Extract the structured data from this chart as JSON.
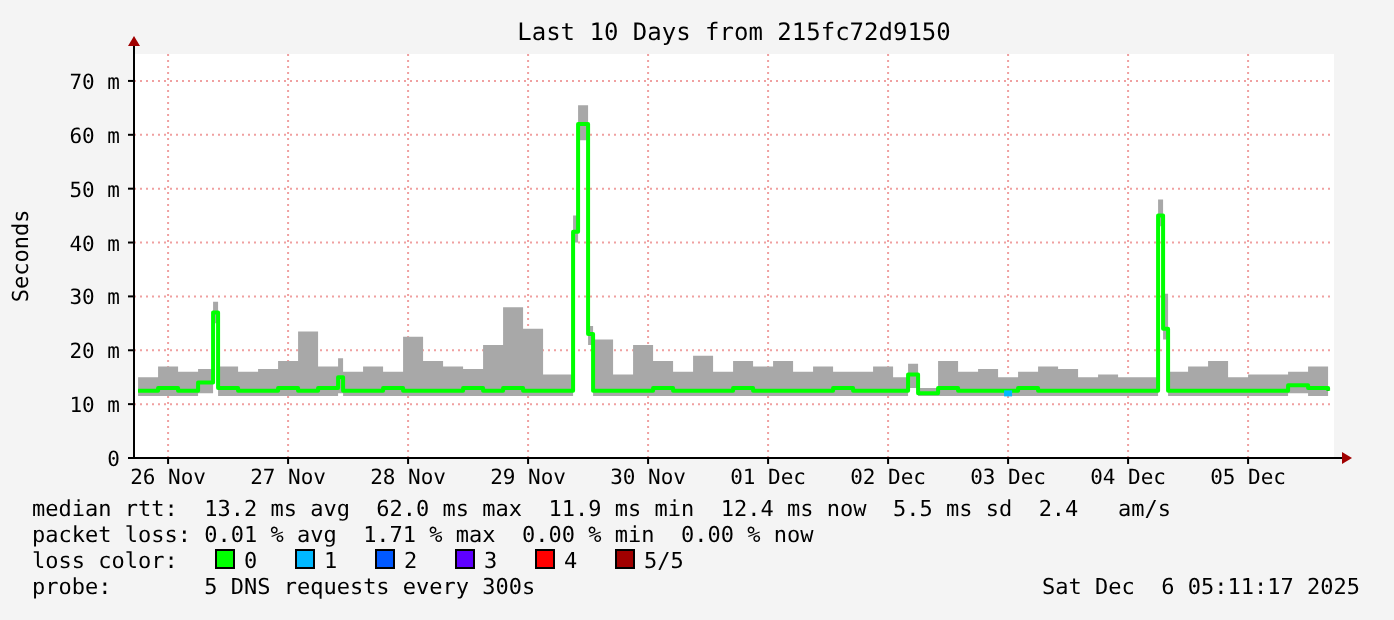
{
  "chart_data": {
    "type": "step",
    "title": "Last 10 Days from 215fc72d9150",
    "ylabel": "Seconds",
    "xlim": [
      "2025-11-26T05:11",
      "2025-12-06T05:11"
    ],
    "xticks": [
      {
        "value": "2025-11-26T12:00",
        "label": "26 Nov"
      },
      {
        "value": "2025-11-27T12:00",
        "label": "27 Nov"
      },
      {
        "value": "2025-11-28T12:00",
        "label": "28 Nov"
      },
      {
        "value": "2025-11-29T12:00",
        "label": "29 Nov"
      },
      {
        "value": "2025-11-30T12:00",
        "label": "30 Nov"
      },
      {
        "value": "2025-12-01T12:00",
        "label": "01 Dec"
      },
      {
        "value": "2025-12-02T12:00",
        "label": "02 Dec"
      },
      {
        "value": "2025-12-03T12:00",
        "label": "03 Dec"
      },
      {
        "value": "2025-12-04T12:00",
        "label": "04 Dec"
      },
      {
        "value": "2025-12-05T12:00",
        "label": "05 Dec"
      }
    ],
    "ylim": [
      0,
      75
    ],
    "yticks": [
      0,
      {
        "value": 10,
        "label": "10 m"
      },
      {
        "value": 20,
        "label": "20 m"
      },
      {
        "value": 30,
        "label": "30 m"
      },
      {
        "value": 40,
        "label": "40 m"
      },
      {
        "value": 50,
        "label": "50 m"
      },
      {
        "value": 60,
        "label": "60 m"
      },
      {
        "value": 70,
        "label": "70 m"
      }
    ],
    "grid": true,
    "legend": "bottom",
    "legend_title": "loss color:",
    "series": [
      {
        "name": "0",
        "color": "#00ff00",
        "x": [
          "2025-11-26T06:00",
          "2025-11-26T10:00",
          "2025-11-26T14:00",
          "2025-11-26T18:00",
          "2025-11-26T21:00",
          "2025-11-26T22:00",
          "2025-11-27T02:00",
          "2025-11-27T06:00",
          "2025-11-27T10:00",
          "2025-11-27T14:00",
          "2025-11-27T18:00",
          "2025-11-27T22:00",
          "2025-11-27T23:00",
          "2025-11-28T03:00",
          "2025-11-28T07:00",
          "2025-11-28T11:00",
          "2025-11-28T15:00",
          "2025-11-28T19:00",
          "2025-11-28T23:00",
          "2025-11-29T03:00",
          "2025-11-29T07:00",
          "2025-11-29T11:00",
          "2025-11-29T15:00",
          "2025-11-29T21:00",
          "2025-11-29T22:00",
          "2025-11-30T00:00",
          "2025-11-30T01:00",
          "2025-11-30T05:00",
          "2025-11-30T09:00",
          "2025-11-30T13:00",
          "2025-11-30T17:00",
          "2025-11-30T21:00",
          "2025-12-01T01:00",
          "2025-12-01T05:00",
          "2025-12-01T09:00",
          "2025-12-01T13:00",
          "2025-12-01T17:00",
          "2025-12-01T21:00",
          "2025-12-02T01:00",
          "2025-12-02T05:00",
          "2025-12-02T09:00",
          "2025-12-02T13:00",
          "2025-12-02T16:00",
          "2025-12-02T18:00",
          "2025-12-02T22:00",
          "2025-12-03T02:00",
          "2025-12-03T06:00",
          "2025-12-03T10:00",
          "2025-12-03T14:00",
          "2025-12-03T18:00",
          "2025-12-03T22:00",
          "2025-12-04T02:00",
          "2025-12-04T06:00",
          "2025-12-04T10:00",
          "2025-12-04T14:00",
          "2025-12-04T18:00",
          "2025-12-04T19:00",
          "2025-12-04T20:00",
          "2025-12-05T00:00",
          "2025-12-05T04:00",
          "2025-12-05T08:00",
          "2025-12-05T12:00",
          "2025-12-05T16:00",
          "2025-12-05T20:00",
          "2025-12-06T00:00",
          "2025-12-06T04:00"
        ],
        "values": [
          12.5,
          13,
          12.5,
          14,
          27,
          13,
          12.5,
          12.5,
          13,
          12.5,
          13,
          15,
          12.5,
          12.5,
          13,
          12.5,
          12.5,
          12.5,
          13,
          12.5,
          13,
          12.5,
          12.5,
          42,
          62,
          23,
          12.5,
          12.5,
          12.5,
          13,
          12.5,
          12.5,
          12.5,
          13,
          12.5,
          12.5,
          12.5,
          12.5,
          13,
          12.5,
          12.5,
          12.5,
          15.5,
          12,
          13,
          12.5,
          12.5,
          12.5,
          13,
          12.5,
          12.5,
          12.5,
          12.5,
          12.5,
          12.5,
          45,
          24,
          12.5,
          12.5,
          12.5,
          12.5,
          12.5,
          12.5,
          13.5,
          13,
          12.5
        ],
        "lower": [
          11.5,
          11.5,
          11.5,
          12,
          25,
          11.5,
          11.5,
          11.5,
          11.5,
          11.5,
          11.5,
          12,
          11.5,
          11.5,
          11.5,
          11.5,
          11.5,
          11.5,
          11.5,
          11.5,
          11.5,
          11.5,
          11.5,
          40,
          59,
          21,
          11.5,
          11.5,
          11.5,
          11.5,
          11.5,
          11.5,
          11.5,
          11.5,
          11.5,
          11.5,
          11.5,
          11.5,
          11.5,
          11.5,
          11.5,
          11.5,
          13,
          11.5,
          11.5,
          11.5,
          11.5,
          11.5,
          11.5,
          11.5,
          11.5,
          11.5,
          11.5,
          11.5,
          11.5,
          43,
          22,
          11.5,
          11.5,
          11.5,
          11.5,
          11.5,
          11.5,
          12,
          11.5,
          11.5
        ],
        "upper": [
          15,
          17,
          16,
          16.5,
          29,
          17,
          16,
          16.5,
          18,
          23.5,
          17,
          18.5,
          16,
          17,
          16,
          22.5,
          18,
          17,
          16.5,
          21,
          28,
          24,
          15.5,
          45,
          65.5,
          24.5,
          22,
          15.5,
          21,
          18,
          16,
          19,
          16,
          18,
          17,
          18,
          16,
          17,
          16,
          16,
          17,
          15,
          17.5,
          13,
          18,
          16,
          16.5,
          15,
          16,
          17,
          16.5,
          15,
          15.5,
          15,
          15,
          48,
          30.5,
          16,
          17,
          18,
          15,
          15.5,
          15.5,
          16,
          17,
          16
        ]
      },
      {
        "name": "1",
        "color": "#00b8ff",
        "type": "scatter",
        "x": [
          "2025-12-03T12:00"
        ],
        "values": [
          12
        ]
      },
      {
        "name": "2",
        "color": "#0059ff",
        "type": "scatter"
      },
      {
        "name": "3",
        "color": "#5e00ff",
        "type": "scatter"
      },
      {
        "name": "4",
        "color": "#ff0000",
        "type": "scatter"
      },
      {
        "name": "5/5",
        "color": "#a00000",
        "type": "scatter"
      }
    ],
    "annotations": [
      "median rtt:  13.2 ms avg  62.0 ms max  11.9 ms min  12.4 ms now  5.5 ms sd  2.4   am/s",
      "packet loss: 0.01 % avg  1.71 % max  0.00 % min  0.00 % now",
      "probe:       5 DNS requests every 300s",
      "Sat Dec  6 05:11:17 2025"
    ]
  }
}
